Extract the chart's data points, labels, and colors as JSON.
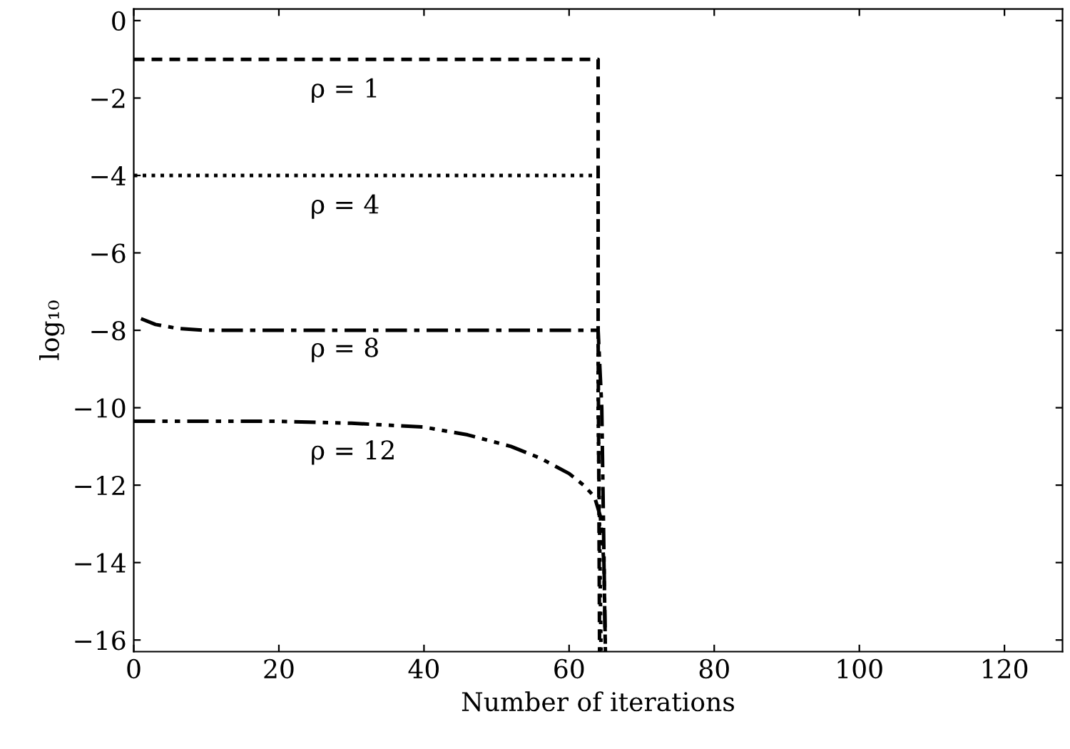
{
  "chart_data": {
    "type": "line",
    "xlabel": "Number of iterations",
    "ylabel": "log₁₀",
    "xlim": [
      0,
      128
    ],
    "xticks": [
      0,
      20,
      40,
      60,
      80,
      100,
      120
    ],
    "ylim": [
      -16.3,
      0.3
    ],
    "yticks": [
      {
        "value": 0,
        "label": "0"
      },
      {
        "value": -2,
        "label": "−2"
      },
      {
        "value": -4,
        "label": "−4"
      },
      {
        "value": -6,
        "label": "−6"
      },
      {
        "value": -8,
        "label": "−8"
      },
      {
        "value": -10,
        "label": "−10"
      },
      {
        "value": -12,
        "label": "−12"
      },
      {
        "value": -14,
        "label": "−14"
      },
      {
        "value": -16,
        "label": "−16"
      }
    ],
    "grid": false,
    "legend": false,
    "series": [
      {
        "name": "ρ = 1",
        "color": "#000000",
        "line_style": "dashed",
        "x": [
          0,
          64,
          64,
          64.2
        ],
        "values": [
          -1,
          -1,
          -8,
          -16.3
        ]
      },
      {
        "name": "ρ = 4",
        "color": "#000000",
        "line_style": "dotted",
        "x": [
          0,
          64,
          64,
          64.4
        ],
        "values": [
          -4,
          -4,
          -10,
          -16.3
        ]
      },
      {
        "name": "ρ = 8",
        "color": "#000000",
        "line_style": "dashdot",
        "x": [
          1,
          3,
          6,
          10,
          20,
          40,
          64,
          64.5,
          65
        ],
        "values": [
          -7.7,
          -7.85,
          -7.95,
          -8,
          -8,
          -8,
          -8,
          -10,
          -16.3
        ]
      },
      {
        "name": "ρ = 12",
        "color": "#000000",
        "line_style": "dashdotdot",
        "x": [
          0,
          10,
          20,
          30,
          40,
          46,
          52,
          56,
          60,
          62,
          63.5,
          64.3,
          64.8,
          65
        ],
        "values": [
          -10.35,
          -10.35,
          -10.35,
          -10.4,
          -10.5,
          -10.7,
          -11,
          -11.3,
          -11.7,
          -12,
          -12.3,
          -12.8,
          -14,
          -16.3
        ]
      }
    ]
  }
}
